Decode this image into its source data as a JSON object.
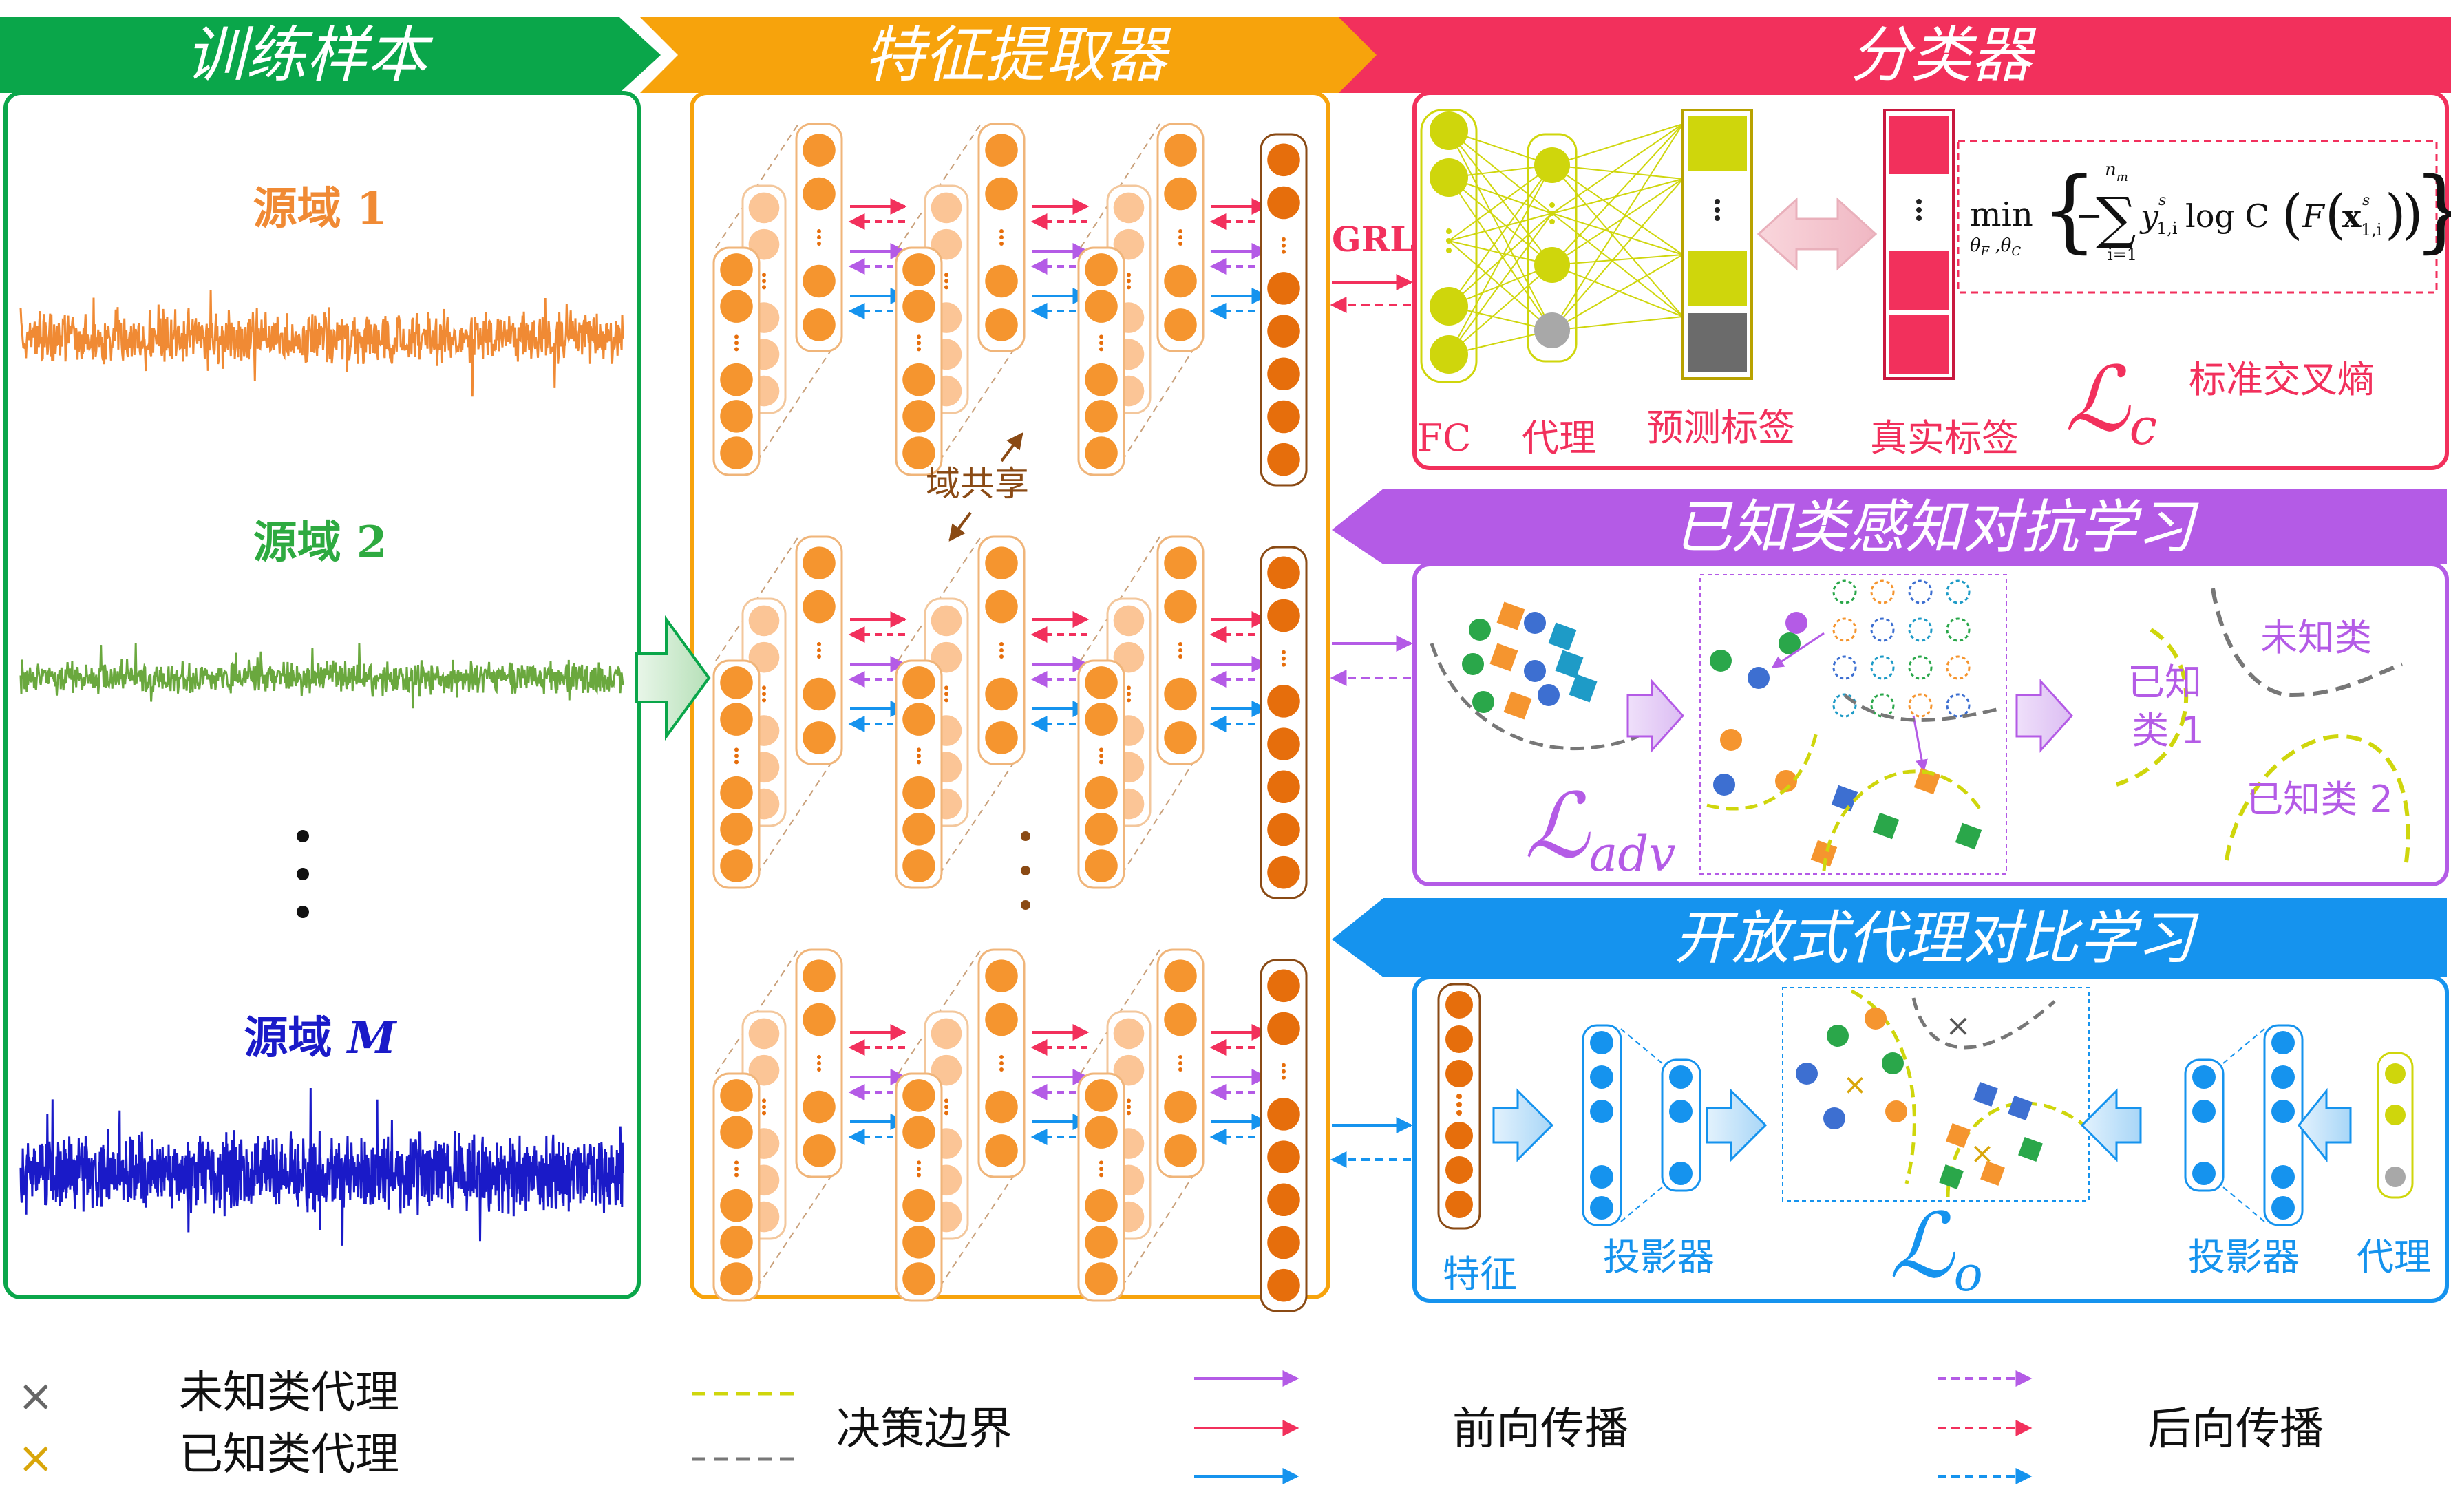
{
  "headers": {
    "training_samples": "训练样本",
    "feature_extractor": "特征提取器",
    "classifier": "分类器",
    "adversarial": "已知类感知对抗学习",
    "contrastive": "开放式代理对比学习"
  },
  "domains": {
    "d1": "源域 1",
    "d2": "源域 2",
    "dm_prefix": "源域 ",
    "dm_suffix": "M",
    "ellipsis": "⋮"
  },
  "extractor": {
    "shared_label": "域共享",
    "grl": "GRL"
  },
  "classifier": {
    "fc": "FC",
    "proxy": "代理",
    "pred_label": "预测标签",
    "true_label": "真实标签",
    "ce": "标准交叉熵",
    "loss_symbol": "ℒ",
    "loss_sub": "c",
    "formula": {
      "min": "min",
      "min_sub": "θF ,θC",
      "sum_top": "n",
      "sum_top_sub": "m",
      "sum_top_sup": "s",
      "sum_bottom": "i=1",
      "body": "y",
      "body_sub": "1,i",
      "body_sup": "s",
      "log": "log C",
      "F": "F",
      "x": "x",
      "x_sub": "1,i",
      "x_sup": "s"
    }
  },
  "adversarial": {
    "unknown_class": "未知类",
    "known1_a": "已知",
    "known1_b": "类 1",
    "known2": "已知类 2",
    "loss_symbol": "ℒ",
    "loss_sub": "adv"
  },
  "contrastive": {
    "feature": "特征",
    "projector_left": "投影器",
    "projector_right": "投影器",
    "proxy": "代理",
    "loss_symbol": "ℒ",
    "loss_sub": "o"
  },
  "legend": {
    "unknown_proxy": "未知类代理",
    "known_proxy": "已知类代理",
    "decision_boundary": "决策边界",
    "forward": "前向传播",
    "backward": "后向传播"
  },
  "colors": {
    "green": "#0aa64a",
    "orange": "#f7a30c",
    "pink": "#f2305c",
    "purple": "#b45be6",
    "blue": "#1593ee",
    "node_orange": "#f5952f",
    "node_dark": "#e66e0c",
    "node_light": "#fbc596",
    "yellowgreen": "#cfd60c",
    "signal1": "#f08a34",
    "signal2": "#6aa83e",
    "signalM": "#1a1ac8"
  }
}
